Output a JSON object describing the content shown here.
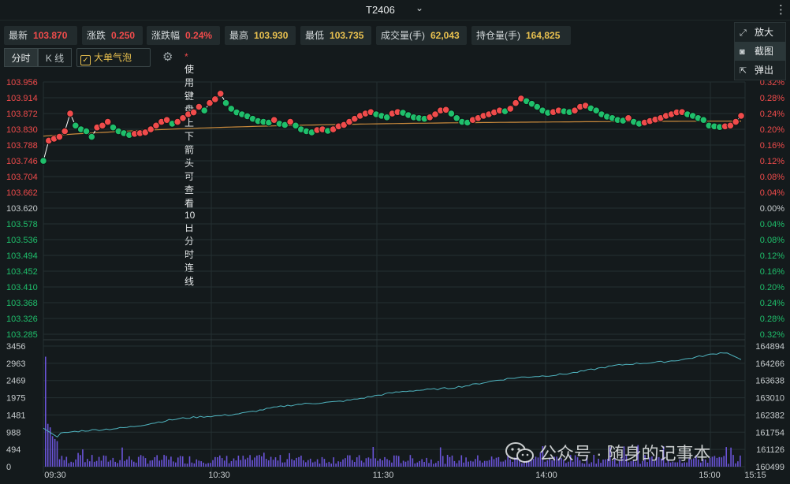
{
  "window": {
    "title": "T2406"
  },
  "quotes": [
    {
      "key": "最新",
      "value": "103.870",
      "color": "red"
    },
    {
      "key": "涨跌",
      "value": "0.250",
      "color": "red"
    },
    {
      "key": "涨跌幅",
      "value": "0.24%",
      "color": "red"
    },
    {
      "key": "最高",
      "value": "103.930",
      "color": "gold"
    },
    {
      "key": "最低",
      "value": "103.735",
      "color": "gold"
    },
    {
      "key": "成交量(手)",
      "value": "62,043",
      "color": "gold"
    },
    {
      "key": "持仓量(手)",
      "value": "164,825",
      "color": "gold"
    }
  ],
  "controls": {
    "tab_timeshare": "分时",
    "tab_kline": "K 线",
    "bubble_label": "大单气泡",
    "bubble_checked": true,
    "hint": "使用键盘上下箭头可查看10日分时连线",
    "hint_mark": "*"
  },
  "menu": {
    "items": [
      {
        "label": "放大",
        "icon": "expand-icon"
      },
      {
        "label": "截图",
        "icon": "camera-icon"
      },
      {
        "label": "弹出",
        "icon": "popout-icon"
      }
    ]
  },
  "watermark": {
    "text": "公众号 · 随身的记事本"
  },
  "colors": {
    "up": "#f04b4b",
    "down": "#1fbf6b",
    "gold": "#e8c04f",
    "price_line": "#ffffff",
    "avg_line": "#c98a3c",
    "oi_line": "#4fb4bf",
    "volume_bar": "#6a54d8",
    "grid": "#243032",
    "bg": "#141a1c"
  },
  "chart_data": {
    "type": "line",
    "price_axis_left": [
      "103.956",
      "103.914",
      "103.872",
      "103.830",
      "103.788",
      "103.746",
      "103.704",
      "103.662",
      "103.620",
      "103.578",
      "103.536",
      "103.494",
      "103.452",
      "103.410",
      "103.368",
      "103.326",
      "103.285"
    ],
    "pct_axis_right": [
      "0.32%",
      "0.28%",
      "0.24%",
      "0.20%",
      "0.16%",
      "0.12%",
      "0.08%",
      "0.04%",
      "0.00%",
      "0.04%",
      "0.08%",
      "0.12%",
      "0.16%",
      "0.20%",
      "0.24%",
      "0.28%",
      "0.32%"
    ],
    "volume_axis_left": [
      "3456",
      "2963",
      "2469",
      "1975",
      "1481",
      "988",
      "494",
      "0"
    ],
    "oi_axis_right": [
      "164894",
      "164266",
      "163638",
      "163010",
      "162382",
      "161754",
      "161126",
      "160499"
    ],
    "time_labels": [
      "09:30",
      "10:30",
      "11:30",
      "14:00",
      "15:00",
      "15:15"
    ],
    "price_range": [
      103.285,
      103.956
    ],
    "pre_close": 103.62,
    "price_series": [
      103.746,
      103.8,
      103.805,
      103.81,
      103.825,
      103.872,
      103.84,
      103.83,
      103.825,
      103.81,
      103.835,
      103.84,
      103.85,
      103.835,
      103.825,
      103.82,
      103.815,
      103.818,
      103.82,
      103.822,
      103.83,
      103.84,
      103.85,
      103.855,
      103.845,
      103.85,
      103.86,
      103.87,
      103.875,
      103.89,
      103.88,
      103.9,
      103.91,
      103.925,
      103.9,
      103.885,
      103.875,
      103.87,
      103.865,
      103.858,
      103.852,
      103.85,
      103.848,
      103.855,
      103.845,
      103.842,
      103.85,
      103.84,
      103.83,
      103.825,
      103.822,
      103.828,
      103.83,
      103.826,
      103.83,
      103.838,
      103.842,
      103.85,
      103.858,
      103.866,
      103.872,
      103.876,
      103.87,
      103.866,
      103.862,
      103.872,
      103.876,
      103.874,
      103.868,
      103.862,
      103.86,
      103.858,
      103.862,
      103.87,
      103.88,
      103.882,
      103.872,
      103.86,
      103.85,
      103.848,
      103.855,
      103.86,
      103.866,
      103.87,
      103.875,
      103.88,
      103.878,
      103.885,
      103.9,
      103.912,
      103.905,
      103.898,
      103.89,
      103.88,
      103.874,
      103.876,
      103.88,
      103.878,
      103.876,
      103.88,
      103.89,
      103.893,
      103.886,
      103.88,
      103.87,
      103.864,
      103.86,
      103.855,
      103.853,
      103.86,
      103.85,
      103.845,
      103.848,
      103.852,
      103.856,
      103.86,
      103.866,
      103.87,
      103.875,
      103.876,
      103.87,
      103.866,
      103.86,
      103.855,
      103.84,
      103.838,
      103.836,
      103.838,
      103.84,
      103.85,
      103.866
    ],
    "avg_series_range": [
      103.812,
      103.852
    ],
    "oi_range": [
      160499,
      164894
    ],
    "oi_start": 161600,
    "oi_end": 164700,
    "volume_max": 3456,
    "volume_peak_first_bar": 3150
  }
}
